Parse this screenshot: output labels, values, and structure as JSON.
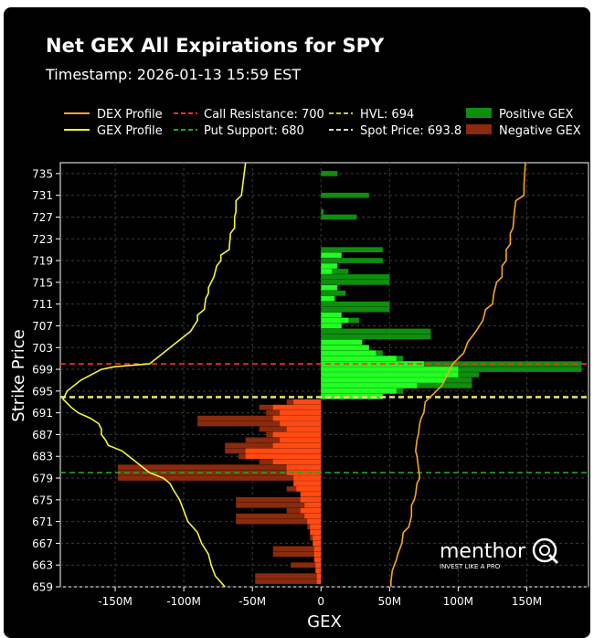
{
  "header": {
    "title": "Net GEX All Expirations for SPY",
    "timestamp": "Timestamp: 2026-01-13 15:59 EST"
  },
  "legend": {
    "dex_profile": "DEX Profile",
    "gex_profile": "GEX Profile",
    "call_resistance": "Call Resistance: 700",
    "put_support": "Put Support: 680",
    "hvl": "HVL: 694",
    "spot_price": "Spot Price: 693.8",
    "positive_gex": "Positive GEX",
    "negative_gex": "Negative GEX"
  },
  "watermark": {
    "brand": "menthor",
    "tagline": "INVEST LIKE A PRO"
  },
  "colors": {
    "background": "#000000",
    "grid": "#3a3a3a",
    "dex": "#f5a623",
    "gex": "#f5f53c",
    "call_resistance": "#ff2d2d",
    "put_support": "#1fa81f",
    "hvl": "#c8c82a",
    "spot": "#d8d8d8",
    "positive_bar": "#0e8f0e",
    "positive_bright": "#22ff22",
    "negative_bar": "#8b2a0c",
    "negative_bright": "#ff4a14"
  },
  "chart_data": {
    "type": "bar",
    "orientation": "horizontal",
    "xlabel": "GEX",
    "ylabel": "Strike Price",
    "xlim": [
      -190,
      195
    ],
    "ylim": [
      659,
      737
    ],
    "x_unit": "M",
    "xticks": [
      -150,
      -100,
      -50,
      0,
      50,
      100,
      150
    ],
    "xtick_labels": [
      "-150M",
      "-100M",
      "-50M",
      "0",
      "50M",
      "100M",
      "150M"
    ],
    "yticks": [
      659,
      663,
      667,
      671,
      675,
      679,
      683,
      687,
      691,
      695,
      699,
      703,
      707,
      711,
      715,
      719,
      723,
      727,
      731,
      735
    ],
    "reference_lines": {
      "call_resistance": 700,
      "put_support": 680,
      "hvl": 694,
      "spot_price": 693.8
    },
    "gex_total": [
      {
        "strike": 735,
        "value": 12
      },
      {
        "strike": 731,
        "value": 35
      },
      {
        "strike": 728,
        "value": 2
      },
      {
        "strike": 727,
        "value": 26
      },
      {
        "strike": 721,
        "value": 45
      },
      {
        "strike": 719,
        "value": 45
      },
      {
        "strike": 717,
        "value": 20
      },
      {
        "strike": 716,
        "value": 50
      },
      {
        "strike": 715,
        "value": 50
      },
      {
        "strike": 713,
        "value": 18
      },
      {
        "strike": 711,
        "value": 50
      },
      {
        "strike": 710,
        "value": 50
      },
      {
        "strike": 708,
        "value": 28
      },
      {
        "strike": 706,
        "value": 80
      },
      {
        "strike": 705,
        "value": 80
      },
      {
        "strike": 703,
        "value": 35
      },
      {
        "strike": 702,
        "value": 45
      },
      {
        "strike": 701,
        "value": 60
      },
      {
        "strike": 700,
        "value": 190
      },
      {
        "strike": 699,
        "value": 190
      },
      {
        "strike": 698,
        "value": 115
      },
      {
        "strike": 697,
        "value": 110
      },
      {
        "strike": 696,
        "value": 110
      },
      {
        "strike": 695,
        "value": 60
      },
      {
        "strike": 694,
        "value": 0
      },
      {
        "strike": 693,
        "value": -25
      },
      {
        "strike": 692,
        "value": -45
      },
      {
        "strike": 691,
        "value": -40
      },
      {
        "strike": 690,
        "value": -90
      },
      {
        "strike": 689,
        "value": -90
      },
      {
        "strike": 688,
        "value": -45
      },
      {
        "strike": 687,
        "value": -40
      },
      {
        "strike": 686,
        "value": -55
      },
      {
        "strike": 685,
        "value": -70
      },
      {
        "strike": 684,
        "value": -70
      },
      {
        "strike": 683,
        "value": -60
      },
      {
        "strike": 682,
        "value": -45
      },
      {
        "strike": 681,
        "value": -148
      },
      {
        "strike": 680,
        "value": -148
      },
      {
        "strike": 679,
        "value": -148
      },
      {
        "strike": 678,
        "value": -20
      },
      {
        "strike": 677,
        "value": -25
      },
      {
        "strike": 675,
        "value": -62
      },
      {
        "strike": 674,
        "value": -62
      },
      {
        "strike": 673,
        "value": -25
      },
      {
        "strike": 672,
        "value": -62
      },
      {
        "strike": 671,
        "value": -62
      },
      {
        "strike": 670,
        "value": -10
      },
      {
        "strike": 668,
        "value": -8
      },
      {
        "strike": 666,
        "value": -35
      },
      {
        "strike": 665,
        "value": -35
      },
      {
        "strike": 663,
        "value": -22
      },
      {
        "strike": 661,
        "value": -48
      },
      {
        "strike": 660,
        "value": -48
      }
    ],
    "gex_short_dated": [
      {
        "strike": 720,
        "value": 15
      },
      {
        "strike": 718,
        "value": 12
      },
      {
        "strike": 717,
        "value": 8
      },
      {
        "strike": 714,
        "value": 12
      },
      {
        "strike": 712,
        "value": 10
      },
      {
        "strike": 709,
        "value": 15
      },
      {
        "strike": 708,
        "value": 20
      },
      {
        "strike": 707,
        "value": 15
      },
      {
        "strike": 704,
        "value": 30
      },
      {
        "strike": 703,
        "value": 35
      },
      {
        "strike": 702,
        "value": 40
      },
      {
        "strike": 701,
        "value": 55
      },
      {
        "strike": 700,
        "value": 75
      },
      {
        "strike": 699,
        "value": 100
      },
      {
        "strike": 698,
        "value": 100
      },
      {
        "strike": 697,
        "value": 90
      },
      {
        "strike": 696,
        "value": 70
      },
      {
        "strike": 695,
        "value": 55
      },
      {
        "strike": 694,
        "value": 45
      },
      {
        "strike": 693,
        "value": -20
      },
      {
        "strike": 692,
        "value": -35
      },
      {
        "strike": 691,
        "value": -30
      },
      {
        "strike": 690,
        "value": -35
      },
      {
        "strike": 689,
        "value": -30
      },
      {
        "strike": 688,
        "value": -25
      },
      {
        "strike": 687,
        "value": -35
      },
      {
        "strike": 686,
        "value": -30
      },
      {
        "strike": 685,
        "value": -35
      },
      {
        "strike": 684,
        "value": -55
      },
      {
        "strike": 683,
        "value": -55
      },
      {
        "strike": 682,
        "value": -35
      },
      {
        "strike": 681,
        "value": -25
      },
      {
        "strike": 680,
        "value": -25
      },
      {
        "strike": 679,
        "value": -20
      },
      {
        "strike": 678,
        "value": -20
      },
      {
        "strike": 677,
        "value": -18
      },
      {
        "strike": 676,
        "value": -15
      },
      {
        "strike": 675,
        "value": -15
      },
      {
        "strike": 674,
        "value": -12
      },
      {
        "strike": 673,
        "value": -15
      },
      {
        "strike": 672,
        "value": -12
      },
      {
        "strike": 671,
        "value": -10
      },
      {
        "strike": 670,
        "value": -8
      },
      {
        "strike": 669,
        "value": -8
      },
      {
        "strike": 668,
        "value": -6
      },
      {
        "strike": 667,
        "value": -6
      },
      {
        "strike": 666,
        "value": -5
      },
      {
        "strike": 665,
        "value": -5
      },
      {
        "strike": 664,
        "value": -5
      },
      {
        "strike": 663,
        "value": -4
      },
      {
        "strike": 662,
        "value": -4
      },
      {
        "strike": 661,
        "value": -3
      },
      {
        "strike": 660,
        "value": -3
      }
    ],
    "gex_profile": [
      {
        "strike": 737,
        "x": -55
      },
      {
        "strike": 733,
        "x": -57
      },
      {
        "strike": 731,
        "x": -58
      },
      {
        "strike": 730,
        "x": -62
      },
      {
        "strike": 728,
        "x": -62
      },
      {
        "strike": 727,
        "x": -63
      },
      {
        "strike": 725,
        "x": -63
      },
      {
        "strike": 724,
        "x": -66
      },
      {
        "strike": 721,
        "x": -67
      },
      {
        "strike": 720,
        "x": -73
      },
      {
        "strike": 719,
        "x": -73
      },
      {
        "strike": 718,
        "x": -76
      },
      {
        "strike": 716,
        "x": -78
      },
      {
        "strike": 714,
        "x": -82
      },
      {
        "strike": 713,
        "x": -82
      },
      {
        "strike": 712,
        "x": -84
      },
      {
        "strike": 710,
        "x": -85
      },
      {
        "strike": 709,
        "x": -90
      },
      {
        "strike": 708,
        "x": -90
      },
      {
        "strike": 706,
        "x": -95
      },
      {
        "strike": 705,
        "x": -100
      },
      {
        "strike": 704,
        "x": -105
      },
      {
        "strike": 702,
        "x": -115
      },
      {
        "strike": 700,
        "x": -125
      },
      {
        "strike": 699.5,
        "x": -150
      },
      {
        "strike": 699,
        "x": -160
      },
      {
        "strike": 697,
        "x": -175
      },
      {
        "strike": 695,
        "x": -185
      },
      {
        "strike": 694,
        "x": -187
      },
      {
        "strike": 693.5,
        "x": -188
      },
      {
        "strike": 693,
        "x": -186
      },
      {
        "strike": 692,
        "x": -182
      },
      {
        "strike": 691,
        "x": -177
      },
      {
        "strike": 690,
        "x": -168
      },
      {
        "strike": 689,
        "x": -162
      },
      {
        "strike": 688,
        "x": -160
      },
      {
        "strike": 687,
        "x": -160
      },
      {
        "strike": 686,
        "x": -157
      },
      {
        "strike": 685,
        "x": -155
      },
      {
        "strike": 684,
        "x": -145
      },
      {
        "strike": 683,
        "x": -140
      },
      {
        "strike": 681,
        "x": -130
      },
      {
        "strike": 680,
        "x": -125
      },
      {
        "strike": 679,
        "x": -115
      },
      {
        "strike": 678,
        "x": -110
      },
      {
        "strike": 677,
        "x": -108
      },
      {
        "strike": 675,
        "x": -103
      },
      {
        "strike": 673,
        "x": -100
      },
      {
        "strike": 671,
        "x": -97
      },
      {
        "strike": 669,
        "x": -90
      },
      {
        "strike": 667,
        "x": -87
      },
      {
        "strike": 665,
        "x": -82
      },
      {
        "strike": 663,
        "x": -80
      },
      {
        "strike": 661,
        "x": -77
      },
      {
        "strike": 659,
        "x": -70
      }
    ],
    "dex_profile": [
      {
        "strike": 737,
        "x": 149
      },
      {
        "strike": 733,
        "x": 148
      },
      {
        "strike": 731,
        "x": 148
      },
      {
        "strike": 730,
        "x": 142
      },
      {
        "strike": 728,
        "x": 141
      },
      {
        "strike": 725,
        "x": 140
      },
      {
        "strike": 724,
        "x": 138
      },
      {
        "strike": 722,
        "x": 138
      },
      {
        "strike": 721,
        "x": 135
      },
      {
        "strike": 719,
        "x": 135
      },
      {
        "strike": 718,
        "x": 132
      },
      {
        "strike": 716,
        "x": 132
      },
      {
        "strike": 715,
        "x": 128
      },
      {
        "strike": 713,
        "x": 126
      },
      {
        "strike": 711,
        "x": 125
      },
      {
        "strike": 710,
        "x": 120
      },
      {
        "strike": 708,
        "x": 118
      },
      {
        "strike": 706,
        "x": 113
      },
      {
        "strike": 704,
        "x": 107
      },
      {
        "strike": 702,
        "x": 104
      },
      {
        "strike": 701,
        "x": 100
      },
      {
        "strike": 700,
        "x": 96
      },
      {
        "strike": 698,
        "x": 92
      },
      {
        "strike": 696,
        "x": 88
      },
      {
        "strike": 694,
        "x": 80
      },
      {
        "strike": 693,
        "x": 76
      },
      {
        "strike": 691,
        "x": 75
      },
      {
        "strike": 690,
        "x": 73
      },
      {
        "strike": 689,
        "x": 72
      },
      {
        "strike": 687,
        "x": 71
      },
      {
        "strike": 686,
        "x": 70
      },
      {
        "strike": 684,
        "x": 69
      },
      {
        "strike": 683,
        "x": 70
      },
      {
        "strike": 681,
        "x": 71
      },
      {
        "strike": 679,
        "x": 72
      },
      {
        "strike": 678,
        "x": 70
      },
      {
        "strike": 676,
        "x": 69
      },
      {
        "strike": 675,
        "x": 68
      },
      {
        "strike": 674,
        "x": 66
      },
      {
        "strike": 672,
        "x": 66
      },
      {
        "strike": 670,
        "x": 64
      },
      {
        "strike": 669,
        "x": 60
      },
      {
        "strike": 667,
        "x": 59
      },
      {
        "strike": 665,
        "x": 56
      },
      {
        "strike": 664,
        "x": 55
      },
      {
        "strike": 662,
        "x": 52
      },
      {
        "strike": 660,
        "x": 51
      },
      {
        "strike": 659,
        "x": 51
      }
    ]
  }
}
